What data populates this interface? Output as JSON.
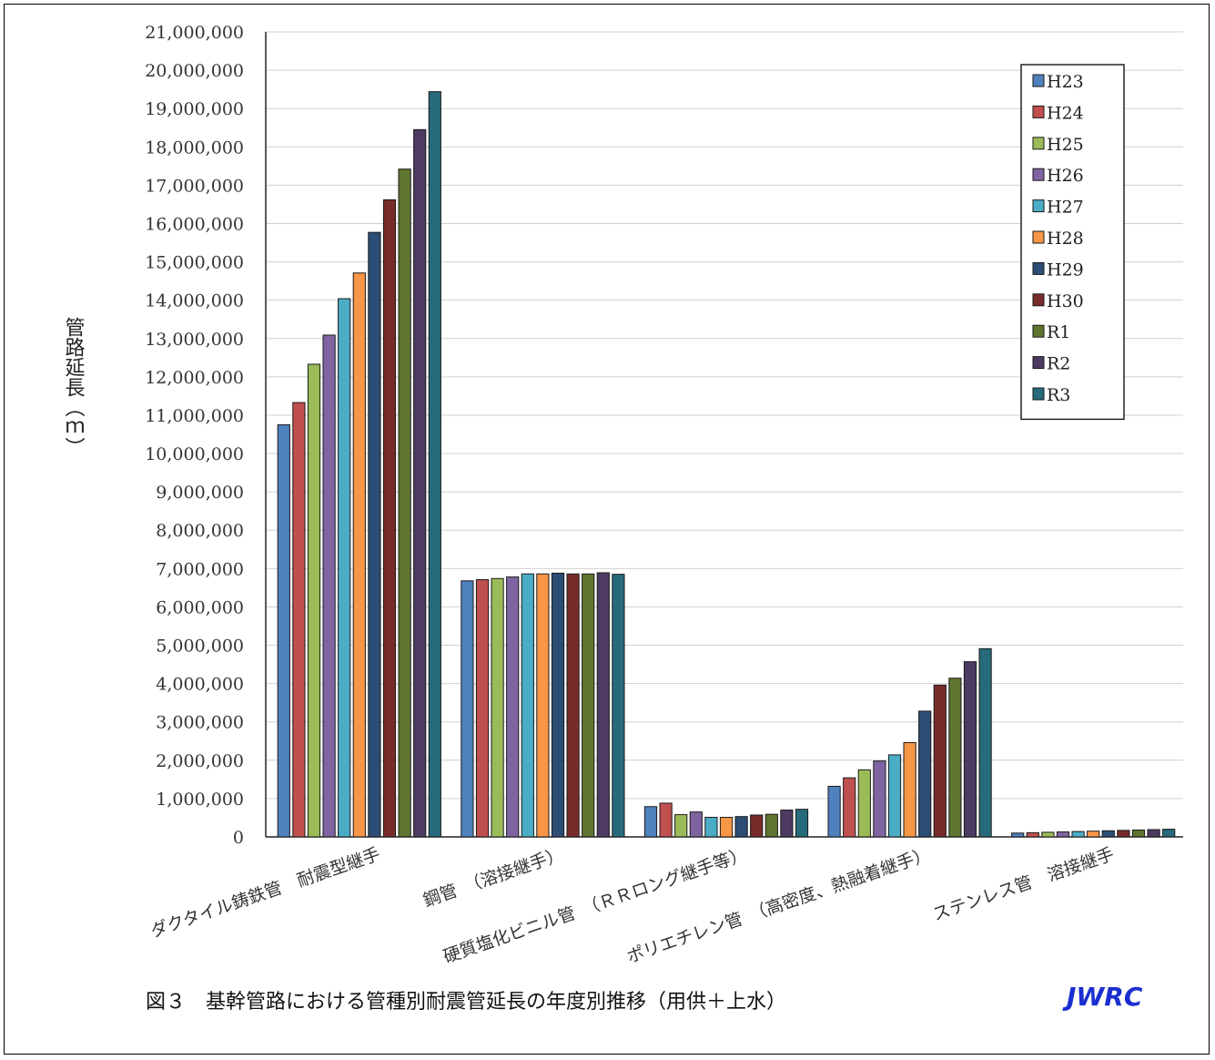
{
  "chart_data": {
    "type": "bar",
    "title": "",
    "ylabel": "管路延長（ｍ）",
    "ylim": [
      0,
      21000000
    ],
    "yticks": [
      0,
      1000000,
      2000000,
      3000000,
      4000000,
      5000000,
      6000000,
      7000000,
      8000000,
      9000000,
      10000000,
      11000000,
      12000000,
      13000000,
      14000000,
      15000000,
      16000000,
      17000000,
      18000000,
      19000000,
      20000000,
      21000000
    ],
    "ytick_labels": [
      "0",
      "1,000,000",
      "2,000,000",
      "3,000,000",
      "4,000,000",
      "5,000,000",
      "6,000,000",
      "7,000,000",
      "8,000,000",
      "9,000,000",
      "10,000,000",
      "11,000,000",
      "12,000,000",
      "13,000,000",
      "14,000,000",
      "15,000,000",
      "16,000,000",
      "17,000,000",
      "18,000,000",
      "19,000,000",
      "20,000,000",
      "21,000,000"
    ],
    "grid": true,
    "legend_position": "top-right",
    "categories": [
      "ダクタイル鋳鉄管　耐震型継手",
      "鋼管　（溶接継手）",
      "硬質塩化ビニル管　（ＲＲロング継手等）",
      "ポリエチレン管　（高密度、熱融着継手）",
      "ステンレス管　溶接継手"
    ],
    "series": [
      {
        "name": "H23",
        "color": "#4f81bd",
        "values": [
          10750000,
          6680000,
          790000,
          1320000,
          100000
        ]
      },
      {
        "name": "H24",
        "color": "#c0504d",
        "values": [
          11330000,
          6710000,
          880000,
          1540000,
          110000
        ]
      },
      {
        "name": "H25",
        "color": "#9bbb59",
        "values": [
          12330000,
          6740000,
          580000,
          1750000,
          120000
        ]
      },
      {
        "name": "H26",
        "color": "#8064a2",
        "values": [
          13090000,
          6780000,
          650000,
          1980000,
          130000
        ]
      },
      {
        "name": "H27",
        "color": "#4bacc6",
        "values": [
          14040000,
          6860000,
          510000,
          2140000,
          140000
        ]
      },
      {
        "name": "H28",
        "color": "#f79646",
        "values": [
          14710000,
          6860000,
          510000,
          2460000,
          150000
        ]
      },
      {
        "name": "H29",
        "color": "#2c4d75",
        "values": [
          15770000,
          6880000,
          530000,
          3280000,
          160000
        ]
      },
      {
        "name": "H30",
        "color": "#772c2a",
        "values": [
          16620000,
          6860000,
          570000,
          3960000,
          170000
        ]
      },
      {
        "name": "R1",
        "color": "#5f7530",
        "values": [
          17420000,
          6860000,
          590000,
          4140000,
          180000
        ]
      },
      {
        "name": "R2",
        "color": "#4d3b62",
        "values": [
          18450000,
          6890000,
          700000,
          4570000,
          190000
        ]
      },
      {
        "name": "R3",
        "color": "#276a7c",
        "values": [
          19440000,
          6850000,
          720000,
          4910000,
          200000
        ]
      }
    ]
  },
  "caption": "図３　基幹管路における管種別耐震管延長の年度別推移（用供＋上水）",
  "brand": "JWRC"
}
